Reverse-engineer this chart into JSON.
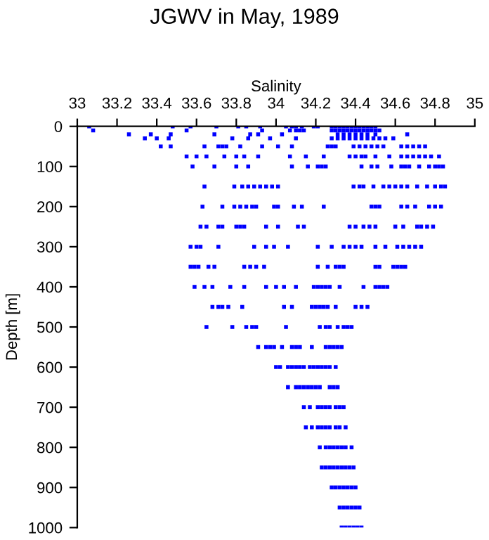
{
  "chart_data": {
    "type": "scatter",
    "title": "JGWV in May, 1989",
    "xlabel": "Salinity",
    "ylabel": "Depth [m]",
    "xlim": [
      33,
      35
    ],
    "xticks": [
      33,
      33.2,
      33.4,
      33.6,
      33.8,
      34,
      34.2,
      34.4,
      34.6,
      34.8,
      35
    ],
    "ylim": [
      1000,
      0
    ],
    "yticks": [
      0,
      100,
      200,
      300,
      400,
      500,
      600,
      700,
      800,
      900,
      1000
    ],
    "grid": false,
    "marker": "square",
    "legend": false,
    "series": [
      {
        "color": "#0000ff",
        "x": [
          33.06,
          33.48,
          33.57,
          33.7,
          33.81,
          33.85,
          33.92,
          34.05,
          34.08,
          34.1,
          34.13,
          34.19,
          34.21,
          34.28,
          34.3,
          34.32,
          34.34,
          34.36,
          34.38,
          34.4,
          34.42,
          34.44,
          34.46,
          34.48,
          34.5
        ],
        "values": [
          0,
          0,
          0,
          0,
          0,
          0,
          0,
          0,
          0,
          0,
          0,
          0,
          0,
          0,
          0,
          0,
          0,
          0,
          0,
          0,
          0,
          0,
          0,
          0,
          0
        ]
      },
      {
        "color": "#0000ff",
        "x": [
          33.08,
          33.55,
          33.93,
          34.07,
          34.1,
          34.12,
          34.14,
          34.28,
          34.3,
          34.32,
          34.34,
          34.36,
          34.38,
          34.4,
          34.42,
          34.44,
          34.46,
          34.48,
          34.5,
          34.52
        ],
        "values": [
          10,
          10,
          10,
          10,
          10,
          10,
          10,
          10,
          10,
          10,
          10,
          10,
          10,
          10,
          10,
          10,
          10,
          10,
          10,
          10
        ]
      },
      {
        "color": "#0000ff",
        "x": [
          33.26,
          33.37,
          33.47,
          33.69,
          33.87,
          33.91,
          34.03,
          34.31,
          34.34,
          34.37,
          34.4,
          34.43,
          34.46,
          34.5,
          34.66
        ],
        "values": [
          20,
          20,
          20,
          20,
          20,
          20,
          20,
          20,
          20,
          20,
          20,
          20,
          20,
          20,
          20
        ]
      },
      {
        "color": "#0000ff",
        "x": [
          33.34,
          33.4,
          33.46,
          33.78,
          33.86,
          33.97,
          34.1,
          34.28,
          34.31,
          34.34,
          34.37,
          34.4,
          34.43,
          34.46,
          34.49,
          34.52,
          34.55,
          34.59
        ],
        "values": [
          30,
          30,
          30,
          30,
          30,
          30,
          30,
          30,
          30,
          30,
          30,
          30,
          30,
          30,
          30,
          30,
          30,
          30
        ]
      },
      {
        "color": "#0000ff",
        "x": [
          33.42,
          33.47,
          33.64,
          33.71,
          33.73,
          33.75,
          33.82,
          33.93,
          34.01,
          34.08,
          34.26,
          34.28,
          34.3,
          34.39,
          34.42,
          34.45,
          34.48,
          34.51,
          34.54,
          34.63,
          34.66,
          34.69,
          34.72,
          34.75
        ],
        "values": [
          50,
          50,
          50,
          50,
          50,
          50,
          50,
          50,
          50,
          50,
          50,
          50,
          50,
          50,
          50,
          50,
          50,
          50,
          50,
          50,
          50,
          50,
          50,
          50
        ]
      },
      {
        "color": "#0000ff",
        "x": [
          33.55,
          33.6,
          33.65,
          33.74,
          33.8,
          33.84,
          33.91,
          34.07,
          34.15,
          34.24,
          34.37,
          34.4,
          34.43,
          34.45,
          34.5,
          34.57,
          34.63,
          34.66,
          34.69,
          34.72,
          34.75,
          34.78,
          34.82
        ],
        "values": [
          75,
          75,
          75,
          75,
          75,
          75,
          75,
          75,
          75,
          75,
          75,
          75,
          75,
          75,
          75,
          75,
          75,
          75,
          75,
          75,
          75,
          75,
          75
        ]
      },
      {
        "color": "#0000ff",
        "x": [
          33.58,
          33.69,
          33.8,
          33.86,
          34.08,
          34.16,
          34.21,
          34.23,
          34.25,
          34.43,
          34.48,
          34.51,
          34.58,
          34.63,
          34.65,
          34.67,
          34.72,
          34.77,
          34.8,
          34.82,
          34.84
        ],
        "values": [
          100,
          100,
          100,
          100,
          100,
          100,
          100,
          100,
          100,
          100,
          100,
          100,
          100,
          100,
          100,
          100,
          100,
          100,
          100,
          100,
          100
        ]
      },
      {
        "color": "#0000ff",
        "x": [
          33.64,
          33.79,
          33.83,
          33.86,
          33.89,
          33.92,
          33.95,
          33.98,
          34.01,
          34.39,
          34.42,
          34.44,
          34.49,
          34.54,
          34.57,
          34.6,
          34.63,
          34.66,
          34.71,
          34.76,
          34.8,
          34.83,
          34.85
        ],
        "values": [
          150,
          150,
          150,
          150,
          150,
          150,
          150,
          150,
          150,
          150,
          150,
          150,
          150,
          150,
          150,
          150,
          150,
          150,
          150,
          150,
          150,
          150,
          150
        ]
      },
      {
        "color": "#0000ff",
        "x": [
          33.63,
          33.73,
          33.79,
          33.82,
          33.85,
          33.88,
          33.9,
          33.99,
          34.01,
          34.09,
          34.13,
          34.24,
          34.48,
          34.5,
          34.52,
          34.63,
          34.66,
          34.7,
          34.77,
          34.8,
          34.83
        ],
        "values": [
          200,
          200,
          200,
          200,
          200,
          200,
          200,
          200,
          200,
          200,
          200,
          200,
          200,
          200,
          200,
          200,
          200,
          200,
          200,
          200,
          200
        ]
      },
      {
        "color": "#0000ff",
        "x": [
          33.62,
          33.65,
          33.71,
          33.73,
          33.8,
          33.82,
          33.84,
          33.95,
          34.01,
          34.11,
          34.14,
          34.37,
          34.4,
          34.44,
          34.47,
          34.5,
          34.6,
          34.64,
          34.71,
          34.73,
          34.76,
          34.79
        ],
        "values": [
          250,
          250,
          250,
          250,
          250,
          250,
          250,
          250,
          250,
          250,
          250,
          250,
          250,
          250,
          250,
          250,
          250,
          250,
          250,
          250,
          250,
          250
        ]
      },
      {
        "color": "#0000ff",
        "x": [
          33.57,
          33.6,
          33.62,
          33.71,
          33.89,
          33.95,
          33.99,
          34.06,
          34.21,
          34.28,
          34.34,
          34.37,
          34.4,
          34.43,
          34.5,
          34.55,
          34.61,
          34.64,
          34.67,
          34.7,
          34.73
        ],
        "values": [
          300,
          300,
          300,
          300,
          300,
          300,
          300,
          300,
          300,
          300,
          300,
          300,
          300,
          300,
          300,
          300,
          300,
          300,
          300,
          300,
          300
        ]
      },
      {
        "color": "#0000ff",
        "x": [
          33.57,
          33.59,
          33.61,
          33.66,
          33.69,
          33.84,
          33.87,
          33.9,
          33.94,
          34.21,
          34.26,
          34.3,
          34.32,
          34.34,
          34.5,
          34.52,
          34.59,
          34.61,
          34.63,
          34.65
        ],
        "values": [
          350,
          350,
          350,
          350,
          350,
          350,
          350,
          350,
          350,
          350,
          350,
          350,
          350,
          350,
          350,
          350,
          350,
          350,
          350,
          350
        ]
      },
      {
        "color": "#0000ff",
        "x": [
          33.59,
          33.64,
          33.68,
          33.77,
          33.84,
          33.95,
          34.0,
          34.04,
          34.1,
          34.19,
          34.21,
          34.23,
          34.25,
          34.27,
          34.32,
          34.44,
          34.5,
          34.52,
          34.54,
          34.56
        ],
        "values": [
          400,
          400,
          400,
          400,
          400,
          400,
          400,
          400,
          400,
          400,
          400,
          400,
          400,
          400,
          400,
          400,
          400,
          400,
          400,
          400
        ]
      },
      {
        "color": "#0000ff",
        "x": [
          33.68,
          33.71,
          33.73,
          33.76,
          33.83,
          34.04,
          34.08,
          34.18,
          34.2,
          34.22,
          34.24,
          34.26,
          34.3,
          34.4,
          34.43,
          34.46
        ],
        "values": [
          450,
          450,
          450,
          450,
          450,
          450,
          450,
          450,
          450,
          450,
          450,
          450,
          450,
          450,
          450,
          450
        ]
      },
      {
        "color": "#0000ff",
        "x": [
          33.65,
          33.78,
          33.85,
          33.88,
          33.9,
          34.05,
          34.22,
          34.25,
          34.27,
          34.31,
          34.34,
          34.36,
          34.38
        ],
        "values": [
          500,
          500,
          500,
          500,
          500,
          500,
          500,
          500,
          500,
          500,
          500,
          500,
          500
        ]
      },
      {
        "color": "#0000ff",
        "x": [
          33.91,
          33.95,
          33.97,
          33.99,
          34.03,
          34.08,
          34.1,
          34.12,
          34.18,
          34.25,
          34.27,
          34.29,
          34.31,
          34.33
        ],
        "values": [
          550,
          550,
          550,
          550,
          550,
          550,
          550,
          550,
          550,
          550,
          550,
          550,
          550,
          550
        ]
      },
      {
        "color": "#0000ff",
        "x": [
          34.0,
          34.02,
          34.06,
          34.08,
          34.1,
          34.12,
          34.14,
          34.17,
          34.19,
          34.21,
          34.23,
          34.25,
          34.27,
          34.3
        ],
        "values": [
          600,
          600,
          600,
          600,
          600,
          600,
          600,
          600,
          600,
          600,
          600,
          600,
          600,
          600
        ]
      },
      {
        "color": "#0000ff",
        "x": [
          34.06,
          34.1,
          34.12,
          34.14,
          34.16,
          34.18,
          34.2,
          34.22,
          34.27,
          34.29,
          34.31
        ],
        "values": [
          650,
          650,
          650,
          650,
          650,
          650,
          650,
          650,
          650,
          650,
          650
        ]
      },
      {
        "color": "#0000ff",
        "x": [
          34.14,
          34.17,
          34.21,
          34.23,
          34.25,
          34.27,
          34.3,
          34.32,
          34.34
        ],
        "values": [
          700,
          700,
          700,
          700,
          700,
          700,
          700,
          700,
          700
        ]
      },
      {
        "color": "#0000ff",
        "x": [
          34.15,
          34.18,
          34.21,
          34.23,
          34.25,
          34.27,
          34.3,
          34.32,
          34.35
        ],
        "values": [
          750,
          750,
          750,
          750,
          750,
          750,
          750,
          750,
          750
        ]
      },
      {
        "color": "#0000ff",
        "x": [
          34.22,
          34.25,
          34.27,
          34.29,
          34.31,
          34.33,
          34.35,
          34.38
        ],
        "values": [
          800,
          800,
          800,
          800,
          800,
          800,
          800,
          800
        ]
      },
      {
        "color": "#0000ff",
        "x": [
          34.23,
          34.25,
          34.27,
          34.29,
          34.31,
          34.33,
          34.35,
          34.37,
          34.39
        ],
        "values": [
          850,
          850,
          850,
          850,
          850,
          850,
          850,
          850,
          850
        ]
      },
      {
        "color": "#0000ff",
        "x": [
          34.28,
          34.3,
          34.32,
          34.34,
          34.36,
          34.38,
          34.4
        ],
        "values": [
          900,
          900,
          900,
          900,
          900,
          900,
          900
        ]
      },
      {
        "color": "#0000ff",
        "x": [
          34.32,
          34.34,
          34.36,
          34.38,
          34.4,
          34.42
        ],
        "values": [
          950,
          950,
          950,
          950,
          950,
          950
        ]
      },
      {
        "color": "#0000ff",
        "x": [
          34.33,
          34.35,
          34.37,
          34.39,
          34.41,
          34.43
        ],
        "values": [
          1000,
          1000,
          1000,
          1000,
          1000,
          1000
        ]
      }
    ]
  }
}
